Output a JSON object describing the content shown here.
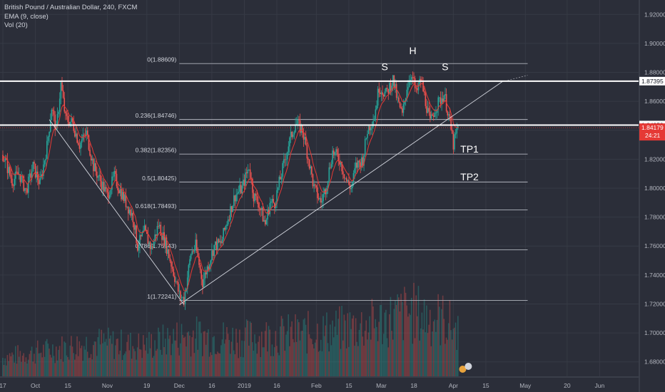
{
  "legend": {
    "title": "British Pound / Australian Dollar, 240, FXCM",
    "ema": "EMA (9, close)",
    "vol": "Vol (20)"
  },
  "colors": {
    "background": "#2b2e39",
    "grid": "#363a45",
    "bull": "#26a69a",
    "bear": "#ef5350",
    "ema": "#e53935",
    "level_line": "#b2b5be",
    "resistance_line": "#ffffff",
    "price_badge": "#e53935"
  },
  "chart_data": {
    "type": "candlestick",
    "symbol": "GBPAUD",
    "ylim": [
      1.67,
      1.93
    ],
    "y_ticks": [
      {
        "value": 1.92,
        "label": "1.92000"
      },
      {
        "value": 1.9,
        "label": "1.90000"
      },
      {
        "value": 1.88,
        "label": "1.88000"
      },
      {
        "value": 1.86,
        "label": "1.86000"
      },
      {
        "value": 1.84,
        "label": "1.84000"
      },
      {
        "value": 1.82,
        "label": "1.82000"
      },
      {
        "value": 1.8,
        "label": "1.80000"
      },
      {
        "value": 1.78,
        "label": "1.78000"
      },
      {
        "value": 1.76,
        "label": "1.76000"
      },
      {
        "value": 1.74,
        "label": "1.74000"
      },
      {
        "value": 1.72,
        "label": "1.72000"
      },
      {
        "value": 1.7,
        "label": "1.70000"
      },
      {
        "value": 1.68,
        "label": "1.68000"
      }
    ],
    "x_ticks": [
      {
        "label": "17",
        "x": 0
      },
      {
        "label": "Oct",
        "x": 14
      },
      {
        "label": "15",
        "x": 28
      },
      {
        "label": "Nov",
        "x": 45
      },
      {
        "label": "19",
        "x": 62
      },
      {
        "label": "Dec",
        "x": 76
      },
      {
        "label": "16",
        "x": 90
      },
      {
        "label": "2019",
        "x": 104
      },
      {
        "label": "16",
        "x": 118
      },
      {
        "label": "Feb",
        "x": 135
      },
      {
        "label": "15",
        "x": 149
      },
      {
        "label": "Mar",
        "x": 163
      },
      {
        "label": "18",
        "x": 177
      },
      {
        "label": "Apr",
        "x": 194
      },
      {
        "label": "15",
        "x": 208
      },
      {
        "label": "May",
        "x": 225
      },
      {
        "label": "20",
        "x": 243
      },
      {
        "label": "Jun",
        "x": 257
      }
    ],
    "x_range": [
      0,
      275
    ],
    "fib_levels": [
      {
        "ratio": "0",
        "price": 1.88609,
        "label": "0(1.88609)"
      },
      {
        "ratio": "0.236",
        "price": 1.84746,
        "label": "0.236(1.84746)"
      },
      {
        "ratio": "0.382",
        "price": 1.82356,
        "label": "0.382(1.82356)"
      },
      {
        "ratio": "0.5",
        "price": 1.80425,
        "label": "0.5(1.80425)"
      },
      {
        "ratio": "0.618",
        "price": 1.78493,
        "label": "0.618(1.78493)"
      },
      {
        "ratio": "0.786",
        "price": 1.75743,
        "label": "0.786(1.75743)"
      },
      {
        "ratio": "1",
        "price": 1.72241,
        "label": "1(1.72241)"
      }
    ],
    "fib_x_range": [
      76,
      226
    ],
    "horizontal_lines": [
      {
        "price": 1.87395,
        "label": "1.87395"
      },
      {
        "price": 1.84359,
        "label": "1.84359"
      }
    ],
    "last_price": {
      "price": 1.84179,
      "label": "1.84179",
      "countdown": "24:21"
    },
    "trend_lines": [
      {
        "from": [
          20,
          1.8474
        ],
        "to": [
          78,
          1.7195
        ]
      },
      {
        "from": [
          76,
          1.7195
        ],
        "to": [
          215,
          1.8735
        ],
        "extend_to": [
          226,
          1.878
        ]
      }
    ],
    "annotations": [
      {
        "text": "S",
        "x": 163,
        "price": 1.8815
      },
      {
        "text": "H",
        "x": 175,
        "price": 1.8925
      },
      {
        "text": "S",
        "x": 189,
        "price": 1.8815
      },
      {
        "text": "TP1",
        "x": 197,
        "price": 1.8247
      },
      {
        "text": "TP2",
        "x": 197,
        "price": 1.8053
      }
    ],
    "price_path": [
      [
        0,
        1.823
      ],
      [
        4,
        1.805
      ],
      [
        7,
        1.81
      ],
      [
        10,
        1.798
      ],
      [
        13,
        1.815
      ],
      [
        16,
        1.803
      ],
      [
        19,
        1.829
      ],
      [
        21,
        1.856
      ],
      [
        23,
        1.84
      ],
      [
        25,
        1.872
      ],
      [
        27,
        1.848
      ],
      [
        30,
        1.845
      ],
      [
        33,
        1.83
      ],
      [
        36,
        1.838
      ],
      [
        39,
        1.815
      ],
      [
        42,
        1.805
      ],
      [
        45,
        1.795
      ],
      [
        48,
        1.808
      ],
      [
        50,
        1.8
      ],
      [
        53,
        1.79
      ],
      [
        56,
        1.78
      ],
      [
        58,
        1.76
      ],
      [
        61,
        1.77
      ],
      [
        64,
        1.758
      ],
      [
        67,
        1.775
      ],
      [
        70,
        1.762
      ],
      [
        73,
        1.745
      ],
      [
        76,
        1.726
      ],
      [
        78,
        1.723
      ],
      [
        81,
        1.755
      ],
      [
        83,
        1.76
      ],
      [
        86,
        1.735
      ],
      [
        88,
        1.745
      ],
      [
        91,
        1.76
      ],
      [
        94,
        1.762
      ],
      [
        97,
        1.78
      ],
      [
        100,
        1.795
      ],
      [
        103,
        1.8
      ],
      [
        106,
        1.815
      ],
      [
        108,
        1.795
      ],
      [
        110,
        1.79
      ],
      [
        113,
        1.775
      ],
      [
        115,
        1.79
      ],
      [
        117,
        1.79
      ],
      [
        120,
        1.81
      ],
      [
        123,
        1.83
      ],
      [
        126,
        1.845
      ],
      [
        129,
        1.84
      ],
      [
        131,
        1.825
      ],
      [
        134,
        1.8
      ],
      [
        137,
        1.79
      ],
      [
        139,
        1.8
      ],
      [
        142,
        1.825
      ],
      [
        145,
        1.82
      ],
      [
        148,
        1.805
      ],
      [
        150,
        1.8
      ],
      [
        152,
        1.815
      ],
      [
        155,
        1.82
      ],
      [
        157,
        1.84
      ],
      [
        160,
        1.85
      ],
      [
        162,
        1.87
      ],
      [
        165,
        1.865
      ],
      [
        168,
        1.875
      ],
      [
        170,
        1.86
      ],
      [
        172,
        1.85
      ],
      [
        174,
        1.87
      ],
      [
        176,
        1.88
      ],
      [
        178,
        1.865
      ],
      [
        180,
        1.875
      ],
      [
        182,
        1.86
      ],
      [
        184,
        1.845
      ],
      [
        186,
        1.855
      ],
      [
        188,
        1.86
      ],
      [
        190,
        1.865
      ],
      [
        192,
        1.85
      ],
      [
        194,
        1.83
      ],
      [
        196,
        1.8418
      ]
    ],
    "volume_profile": [
      [
        0,
        0.25
      ],
      [
        20,
        0.35
      ],
      [
        40,
        0.45
      ],
      [
        60,
        0.4
      ],
      [
        80,
        0.55
      ],
      [
        100,
        0.5
      ],
      [
        120,
        0.55
      ],
      [
        140,
        0.6
      ],
      [
        160,
        0.7
      ],
      [
        175,
        0.85
      ],
      [
        190,
        0.75
      ],
      [
        196,
        0.6
      ]
    ]
  }
}
